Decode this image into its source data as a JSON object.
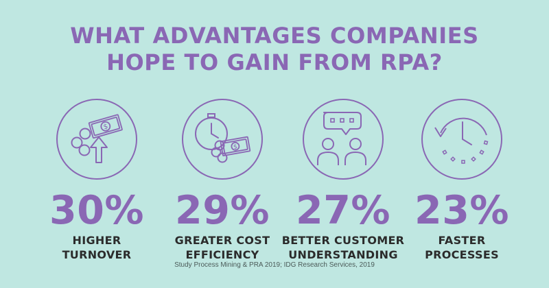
{
  "title": {
    "line1": "WHAT ADVANTAGES COMPANIES",
    "line2": "HOPE TO GAIN FROM RPA?"
  },
  "stats": [
    {
      "value": "30%",
      "label_line1": "HIGHER",
      "label_line2": "TURNOVER",
      "icon": "money-growth-icon"
    },
    {
      "value": "29%",
      "label_line1": "GREATER COST",
      "label_line2": "EFFICIENCY",
      "icon": "stopwatch-money-icon"
    },
    {
      "value": "27%",
      "label_line1": "BETTER CUSTOMER",
      "label_line2": "UNDERSTANDING",
      "icon": "conversation-icon"
    },
    {
      "value": "23%",
      "label_line1": "FASTER",
      "label_line2": "PROCESSES",
      "icon": "clock-refresh-icon"
    }
  ],
  "source": "Study Process Mining & PRA 2019; IDG Research Services, 2019",
  "colors": {
    "background": "#bfe7e1",
    "accent": "#8a67b4",
    "text": "#2b2b2b"
  }
}
